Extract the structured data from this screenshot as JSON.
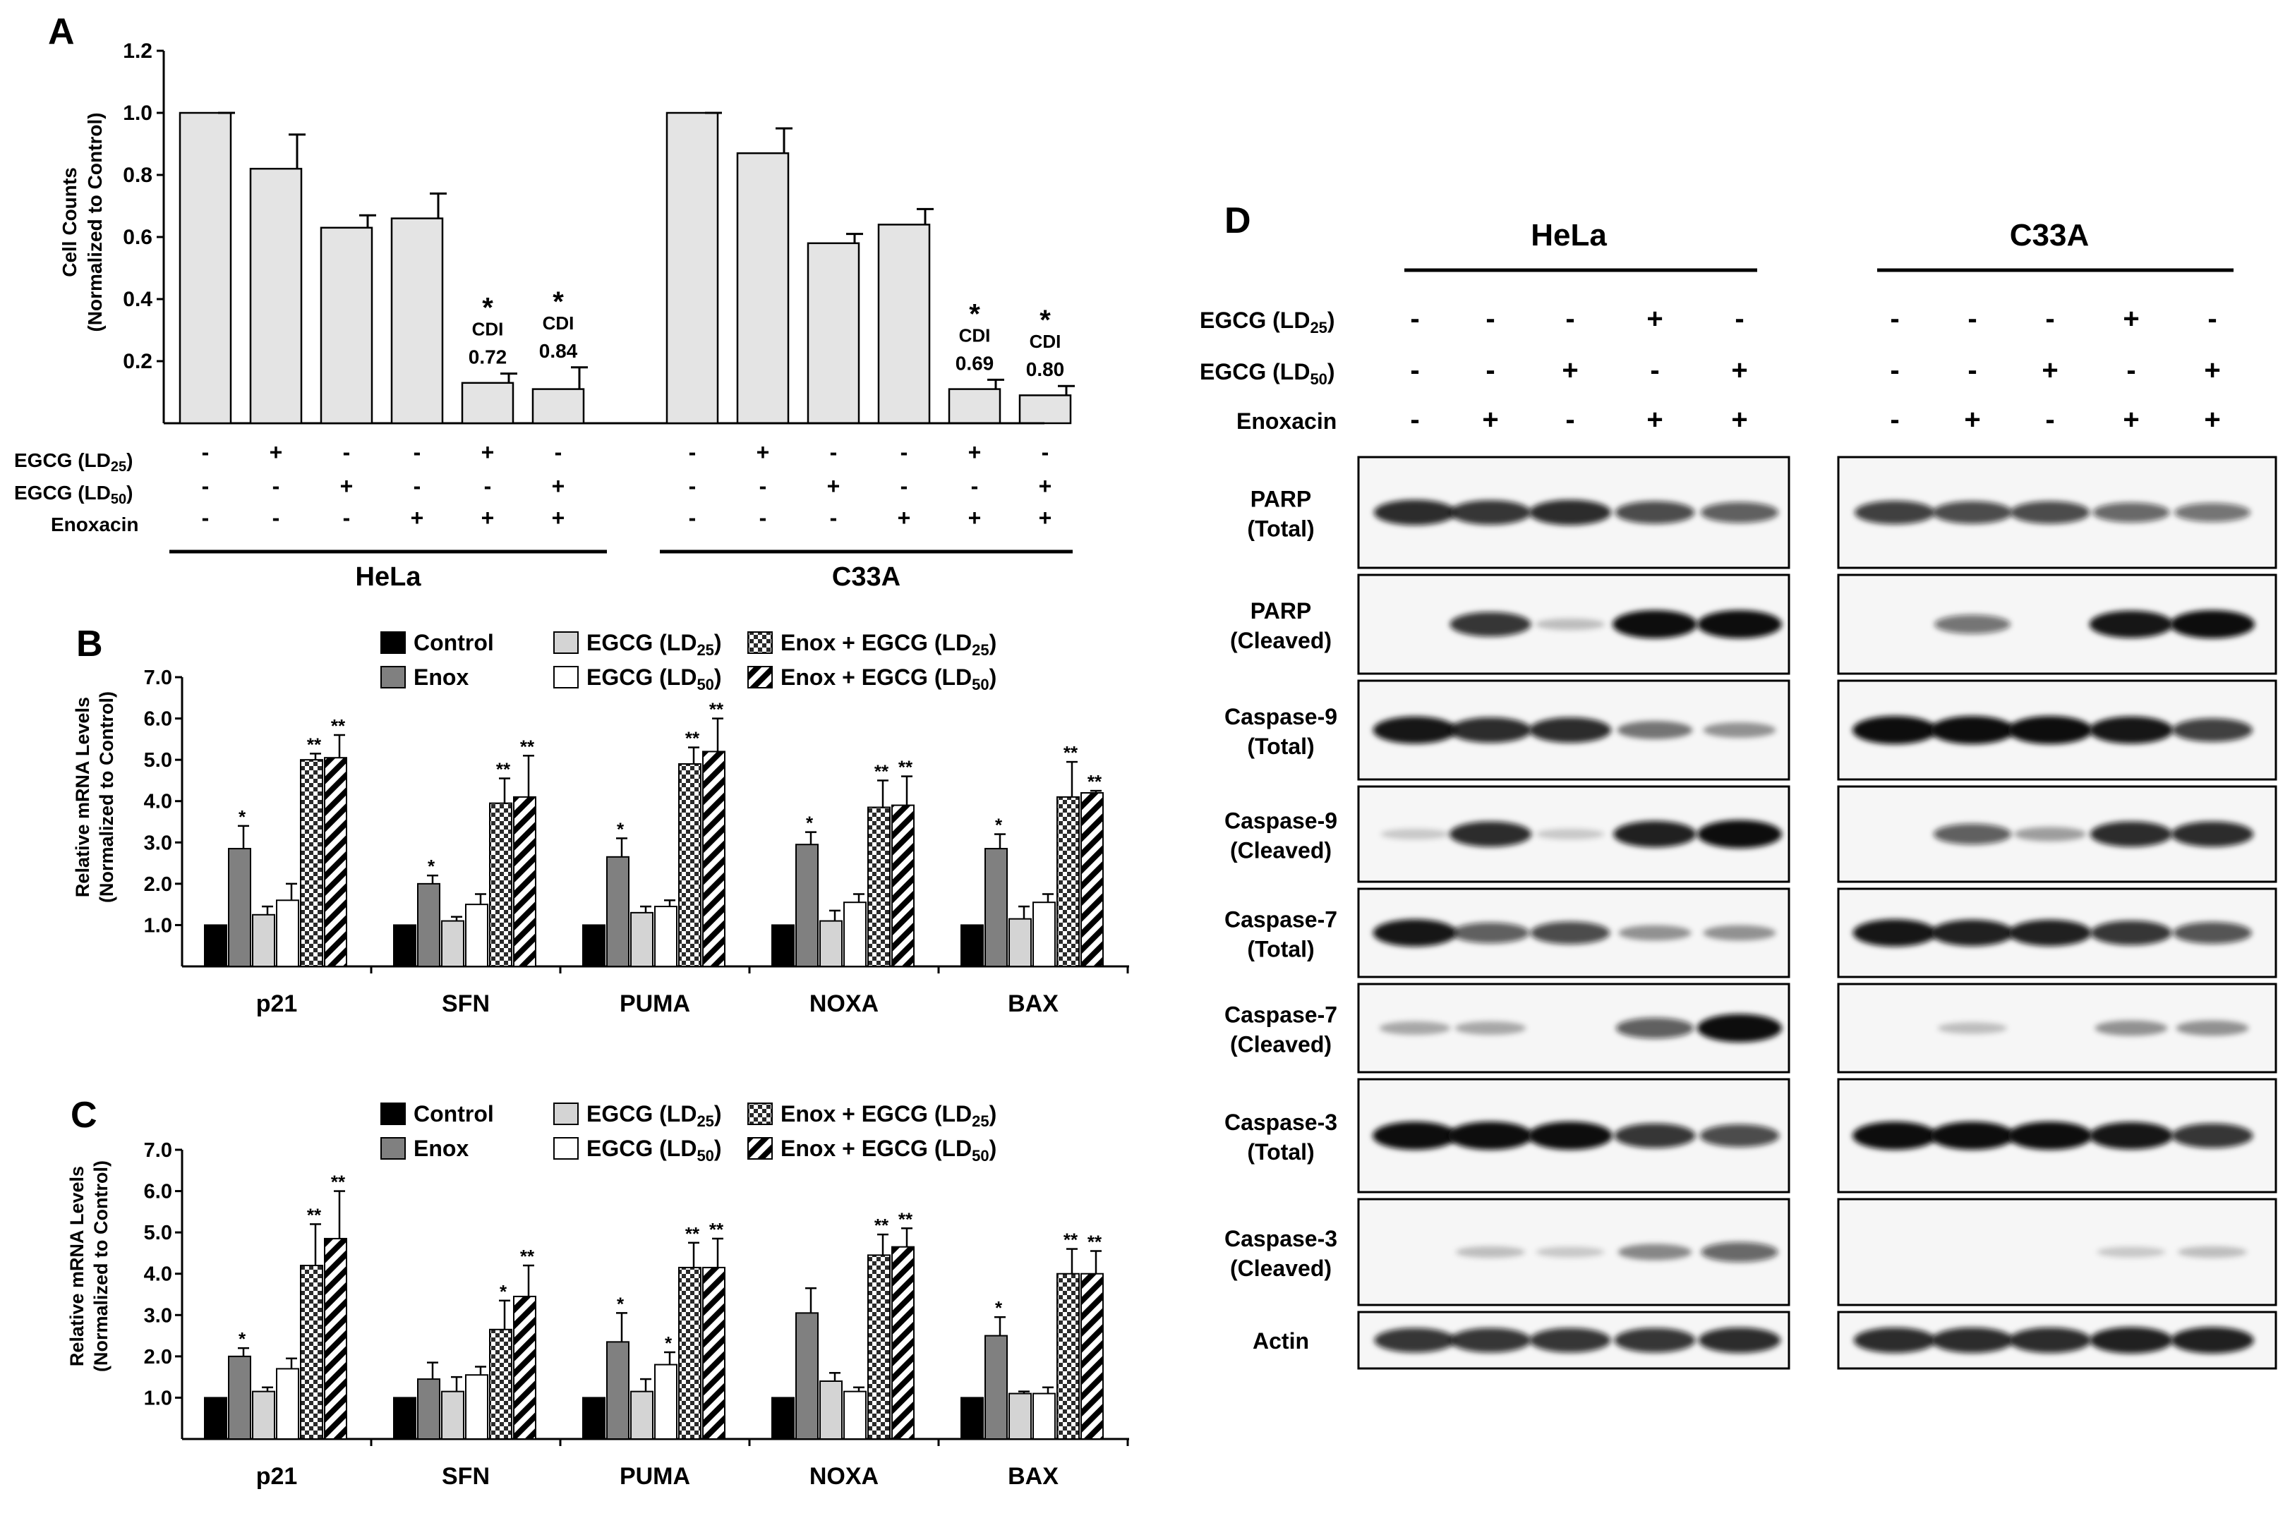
{
  "panels": {
    "A": {
      "letter": "A",
      "ylabel_line1": "Cell Counts",
      "ylabel_line2": "(Normalized to Control)",
      "yticks": [
        "0.2",
        "0.4",
        "0.6",
        "0.8",
        "1.0",
        "1.2"
      ],
      "ylim": [
        0,
        1.2
      ],
      "row_labels": [
        "EGCG (LD25)",
        "EGCG (LD50)",
        "Enoxacin"
      ],
      "groups": [
        {
          "name": "HeLa",
          "values": [
            1.0,
            0.82,
            0.63,
            0.66,
            0.13,
            0.11
          ],
          "errors": [
            0.005,
            0.11,
            0.04,
            0.08,
            0.03,
            0.07
          ],
          "rows": [
            [
              "-",
              "+",
              "-",
              "-",
              "+",
              "-"
            ],
            [
              "-",
              "-",
              "+",
              "-",
              "-",
              "+"
            ],
            [
              "-",
              "-",
              "-",
              "+",
              "+",
              "+"
            ]
          ],
          "annotations": [
            null,
            null,
            null,
            null,
            {
              "star": "*",
              "cdi_label": "CDI",
              "cdi": "0.72"
            },
            {
              "star": "*",
              "cdi_label": "CDI",
              "cdi": "0.84"
            }
          ]
        },
        {
          "name": "C33A",
          "values": [
            1.0,
            0.87,
            0.58,
            0.64,
            0.11,
            0.09
          ],
          "errors": [
            0.005,
            0.08,
            0.03,
            0.05,
            0.03,
            0.03
          ],
          "rows": [
            [
              "-",
              "+",
              "-",
              "-",
              "+",
              "-"
            ],
            [
              "-",
              "-",
              "+",
              "-",
              "-",
              "+"
            ],
            [
              "-",
              "-",
              "-",
              "+",
              "+",
              "+"
            ]
          ],
          "annotations": [
            null,
            null,
            null,
            null,
            {
              "star": "*",
              "cdi_label": "CDI",
              "cdi": "0.69"
            },
            {
              "star": "*",
              "cdi_label": "CDI",
              "cdi": "0.80"
            }
          ]
        }
      ]
    },
    "B": {
      "letter": "B",
      "ylabel_line1": "Relative mRNA Levels",
      "ylabel_line2": "(Normalized to Control)",
      "yticks": [
        "1.0",
        "2.0",
        "3.0",
        "4.0",
        "5.0",
        "6.0",
        "7.0"
      ],
      "ylim": [
        0,
        7
      ],
      "legend": [
        "Control",
        "Enox",
        "EGCG (LD25)",
        "EGCG (LD50)",
        "Enox + EGCG (LD25)",
        "Enox + EGCG (LD50)"
      ],
      "categories": [
        "p21",
        "SFN",
        "PUMA",
        "NOXA",
        "BAX"
      ],
      "values": [
        [
          1.0,
          2.85,
          1.25,
          1.6,
          5.0,
          5.05
        ],
        [
          1.0,
          2.0,
          1.1,
          1.5,
          3.95,
          4.1
        ],
        [
          1.0,
          2.65,
          1.3,
          1.45,
          4.9,
          5.2
        ],
        [
          1.0,
          2.95,
          1.1,
          1.55,
          3.85,
          3.9
        ],
        [
          1.0,
          2.85,
          1.15,
          1.55,
          4.1,
          4.2
        ]
      ],
      "errors": [
        [
          0,
          0.55,
          0.2,
          0.4,
          0.15,
          0.55
        ],
        [
          0,
          0.2,
          0.1,
          0.25,
          0.6,
          1.0
        ],
        [
          0,
          0.45,
          0.15,
          0.15,
          0.4,
          0.8
        ],
        [
          0,
          0.3,
          0.25,
          0.2,
          0.65,
          0.7
        ],
        [
          0,
          0.35,
          0.3,
          0.2,
          0.85,
          0.05
        ]
      ],
      "sig": [
        [
          "",
          "*",
          "",
          "",
          "**",
          "**"
        ],
        [
          "",
          "*",
          "",
          "",
          "**",
          "**"
        ],
        [
          "",
          "*",
          "",
          "",
          "**",
          "**"
        ],
        [
          "",
          "*",
          "",
          "",
          "**",
          "**"
        ],
        [
          "",
          "*",
          "",
          "",
          "**",
          "**"
        ]
      ]
    },
    "C": {
      "letter": "C",
      "ylabel_line1": "Relative mRNA Levels",
      "ylabel_line2": "(Normalized to Control)",
      "yticks": [
        "1.0",
        "2.0",
        "3.0",
        "4.0",
        "5.0",
        "6.0",
        "7.0"
      ],
      "ylim": [
        0,
        7
      ],
      "legend": [
        "Control",
        "Enox",
        "EGCG (LD25)",
        "EGCG (LD50)",
        "Enox + EGCG (LD25)",
        "Enox + EGCG (LD50)"
      ],
      "categories": [
        "p21",
        "SFN",
        "PUMA",
        "NOXA",
        "BAX"
      ],
      "values": [
        [
          1.0,
          2.0,
          1.15,
          1.7,
          4.2,
          4.85
        ],
        [
          1.0,
          1.45,
          1.15,
          1.55,
          2.65,
          3.45
        ],
        [
          1.0,
          2.35,
          1.15,
          1.8,
          4.15,
          4.15
        ],
        [
          1.0,
          3.05,
          1.4,
          1.15,
          4.45,
          4.65
        ],
        [
          1.0,
          2.5,
          1.1,
          1.1,
          4.0,
          4.0
        ]
      ],
      "errors": [
        [
          0,
          0.2,
          0.1,
          0.25,
          1.0,
          1.15
        ],
        [
          0,
          0.4,
          0.35,
          0.2,
          0.7,
          0.75
        ],
        [
          0,
          0.7,
          0.3,
          0.3,
          0.6,
          0.7
        ],
        [
          0,
          0.6,
          0.2,
          0.1,
          0.5,
          0.45
        ],
        [
          0,
          0.45,
          0.05,
          0.15,
          0.6,
          0.55
        ]
      ],
      "sig": [
        [
          "",
          "*",
          "",
          "",
          "**",
          "**"
        ],
        [
          "",
          "",
          "",
          "",
          "*",
          "**"
        ],
        [
          "",
          "*",
          "",
          "*",
          "**",
          "**"
        ],
        [
          "",
          "",
          "",
          "",
          "**",
          "**"
        ],
        [
          "",
          "*",
          "",
          "",
          "**",
          "**"
        ]
      ]
    },
    "D": {
      "letter": "D",
      "cell_lines": [
        "HeLa",
        "C33A"
      ],
      "treatment_labels": [
        "EGCG (LD25)",
        "EGCG (LD50)",
        "Enoxacin"
      ],
      "treatment_rows": [
        [
          "-",
          "-",
          "-",
          "+",
          "-"
        ],
        [
          "-",
          "-",
          "+",
          "-",
          "+"
        ],
        [
          "-",
          "+",
          "-",
          "+",
          "+"
        ]
      ],
      "blots": [
        {
          "label1": "PARP",
          "label2": "(Total)"
        },
        {
          "label1": "PARP",
          "label2": "(Cleaved)"
        },
        {
          "label1": "Caspase-9",
          "label2": "(Total)"
        },
        {
          "label1": "Caspase-9",
          "label2": "(Cleaved)"
        },
        {
          "label1": "Caspase-7",
          "label2": "(Total)"
        },
        {
          "label1": "Caspase-7",
          "label2": "(Cleaved)"
        },
        {
          "label1": "Caspase-3",
          "label2": "(Total)"
        },
        {
          "label1": "Caspase-3",
          "label2": "(Cleaved)"
        },
        {
          "label1": "Actin",
          "label2": ""
        }
      ],
      "band_intensity": {
        "HeLa": [
          [
            0.85,
            0.8,
            0.85,
            0.7,
            0.6
          ],
          [
            0,
            0.8,
            0.1,
            1.0,
            1.0
          ],
          [
            0.95,
            0.85,
            0.85,
            0.45,
            0.3
          ],
          [
            0.05,
            0.85,
            0.05,
            0.9,
            1.0
          ],
          [
            0.95,
            0.6,
            0.7,
            0.3,
            0.3
          ],
          [
            0.2,
            0.2,
            0,
            0.6,
            1.0
          ],
          [
            1.0,
            1.0,
            1.0,
            0.8,
            0.7
          ],
          [
            0,
            0.1,
            0.05,
            0.35,
            0.55
          ],
          [
            0.8,
            0.8,
            0.8,
            0.8,
            0.85
          ]
        ],
        "C33A": [
          [
            0.75,
            0.7,
            0.7,
            0.55,
            0.5
          ],
          [
            0,
            0.5,
            0,
            0.95,
            1.0
          ],
          [
            1.0,
            1.0,
            1.0,
            0.95,
            0.75
          ],
          [
            0,
            0.6,
            0.25,
            0.85,
            0.85
          ],
          [
            0.95,
            0.9,
            0.9,
            0.8,
            0.65
          ],
          [
            0,
            0.1,
            0,
            0.3,
            0.3
          ],
          [
            1.0,
            1.0,
            1.0,
            0.95,
            0.8
          ],
          [
            0,
            0,
            0,
            0.05,
            0.1
          ],
          [
            0.85,
            0.85,
            0.85,
            0.9,
            0.9
          ]
        ]
      }
    }
  },
  "colors": {
    "control": "#000000",
    "enox": "#808080",
    "egcg_ld25": "#d4d4d4",
    "egcg_ld50": "#ffffff",
    "barA": "#e4e4e4",
    "blot_bg": "#f6f6f6",
    "band": "#0c0c0c"
  }
}
